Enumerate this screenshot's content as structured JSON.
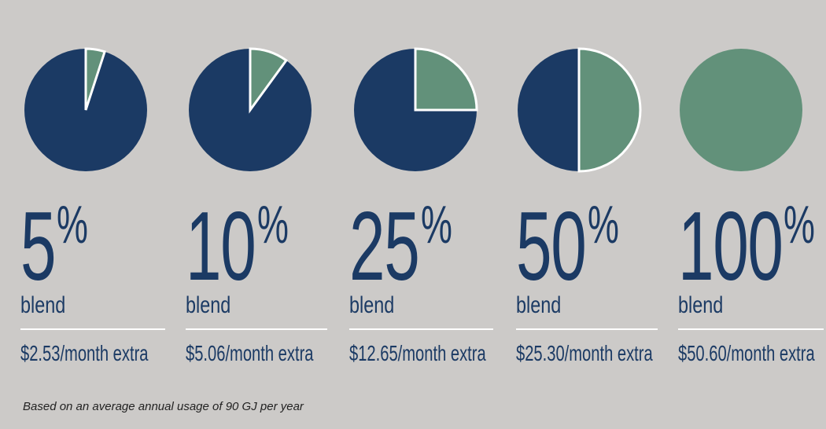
{
  "chart_data": {
    "type": "pie",
    "colors": {
      "conventional": "#1b3a64",
      "renewable": "#62917a",
      "text": "#1b3a64",
      "background": "#cccac8"
    },
    "charts": [
      {
        "percent": 5,
        "percent_label": "5",
        "blend_label": "blend",
        "price_label": "$2.53/month extra"
      },
      {
        "percent": 10,
        "percent_label": "10",
        "blend_label": "blend",
        "price_label": "$5.06/month extra"
      },
      {
        "percent": 25,
        "percent_label": "25",
        "blend_label": "blend",
        "price_label": "$12.65/month extra"
      },
      {
        "percent": 50,
        "percent_label": "50",
        "blend_label": "blend",
        "price_label": "$25.30/month extra"
      },
      {
        "percent": 100,
        "percent_label": "100",
        "blend_label": "blend",
        "price_label": "$50.60/month extra"
      }
    ],
    "percent_symbol": "%",
    "footnote": "Based on an average annual usage of 90 GJ per year"
  }
}
